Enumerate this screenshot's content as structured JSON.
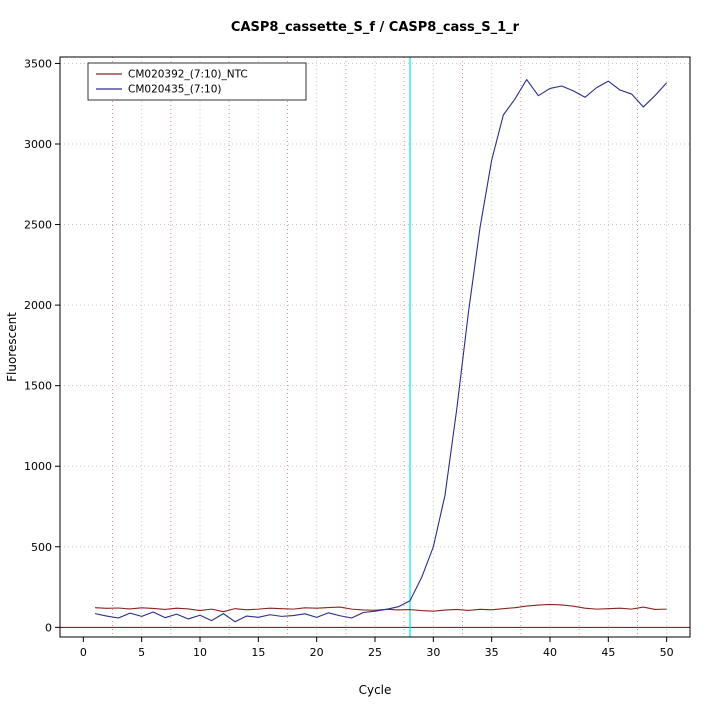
{
  "chart_data": {
    "type": "line",
    "title": "CASP8_cassette_S_f / CASP8_cass_S_1_r",
    "xlabel": "Cycle",
    "ylabel": "Fluorescent",
    "xlim": [
      -2,
      52
    ],
    "ylim": [
      -60,
      3540
    ],
    "x_ticks": [
      0,
      5,
      10,
      15,
      20,
      25,
      30,
      35,
      40,
      45,
      50
    ],
    "y_ticks": [
      0,
      500,
      1000,
      1500,
      2000,
      2500,
      3000,
      3500
    ],
    "x_start": 1,
    "grid": {
      "major_color": "#c8c8c8",
      "minor_color": "#e09090",
      "h_lines": [
        500,
        1000,
        1500,
        2000,
        2500,
        3000,
        3500
      ],
      "v_major": [
        5,
        10,
        15,
        20,
        25,
        30,
        35,
        40,
        45,
        50
      ],
      "v_minor": [
        2.5,
        7.5,
        12.5,
        17.5,
        22.5,
        27.5,
        32.5,
        37.5,
        42.5,
        47.5
      ]
    },
    "baseline": {
      "y": 0,
      "color": "#8b0000"
    },
    "threshold_line": {
      "x": 28,
      "color": "#00e5e5"
    },
    "series": [
      {
        "name": "CM020392_(7:10)_NTC",
        "color": "#8b2323",
        "values": [
          122,
          118,
          120,
          114,
          121,
          117,
          111,
          119,
          114,
          104,
          113,
          97,
          116,
          109,
          113,
          119,
          116,
          113,
          121,
          119,
          123,
          126,
          113,
          108,
          106,
          112,
          108,
          110,
          104,
          100,
          107,
          111,
          105,
          112,
          109,
          116,
          122,
          132,
          138,
          142,
          139,
          131,
          119,
          113,
          116,
          119,
          113,
          126,
          111,
          113
        ]
      },
      {
        "name": "CM020435_(7:10)",
        "color": "#2c2c8c",
        "values": [
          85,
          70,
          58,
          88,
          68,
          95,
          60,
          82,
          52,
          75,
          42,
          85,
          35,
          70,
          62,
          78,
          68,
          73,
          84,
          62,
          90,
          72,
          58,
          92,
          100,
          112,
          128,
          165,
          310,
          500,
          820,
          1350,
          1950,
          2480,
          2900,
          3180,
          3280,
          3400,
          3300,
          3345,
          3360,
          3330,
          3290,
          3350,
          3390,
          3335,
          3310,
          3230,
          3300,
          3380
        ]
      }
    ],
    "legend_position": "top-left"
  }
}
